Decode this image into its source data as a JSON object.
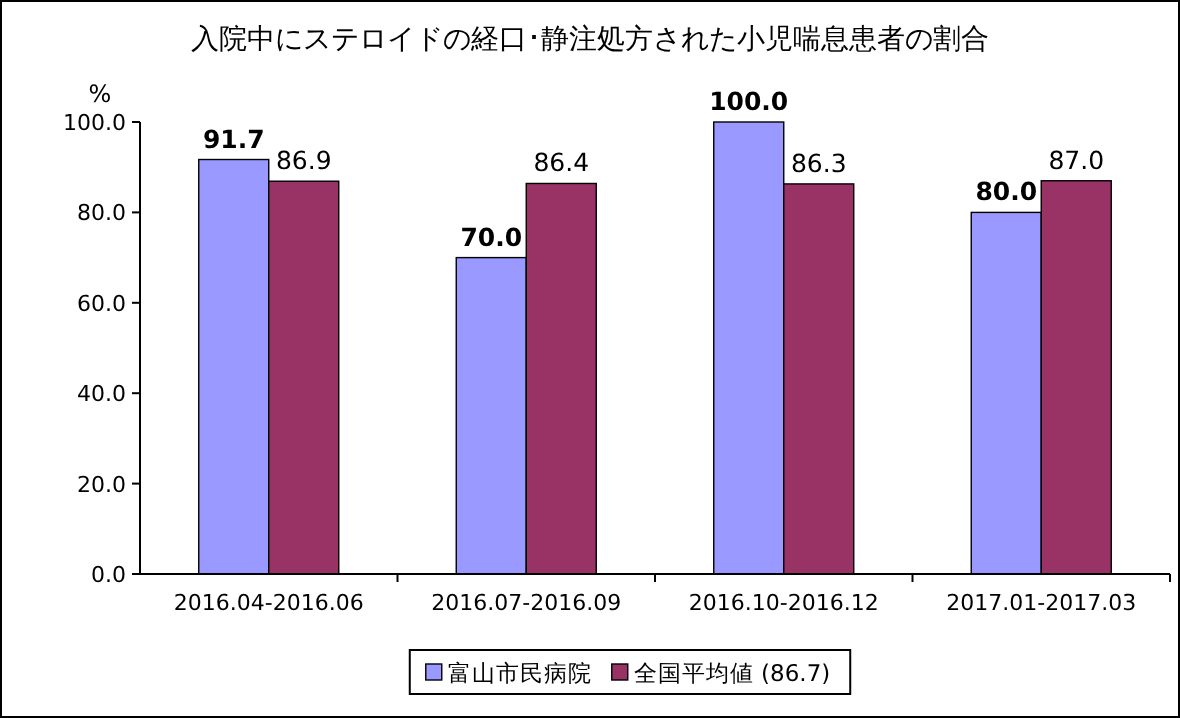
{
  "chart_data": {
    "type": "bar",
    "title": "入院中にステロイドの経口･静注処方された小児喘息患者の割合",
    "ylabel": "%",
    "categories": [
      "2016.04-2016.06",
      "2016.07-2016.09",
      "2016.10-2016.12",
      "2017.01-2017.03"
    ],
    "series": [
      {
        "name": "富山市民病院",
        "color": "#9999ff",
        "values": [
          91.7,
          70.0,
          100.0,
          80.0
        ],
        "value_labels": [
          "91.7",
          "70.0",
          "100.0",
          "80.0"
        ]
      },
      {
        "name": "全国平均値 (86.7)",
        "color": "#993366",
        "values": [
          86.9,
          86.4,
          86.3,
          87.0
        ],
        "value_labels": [
          "86.9",
          "86.4",
          "86.3",
          "87.0"
        ]
      }
    ],
    "ylim": [
      0,
      100
    ],
    "yticks": [
      {
        "value": 0,
        "label": "0.0"
      },
      {
        "value": 20,
        "label": "20.0"
      },
      {
        "value": 40,
        "label": "40.0"
      },
      {
        "value": 60,
        "label": "60.0"
      },
      {
        "value": 80,
        "label": "80.0"
      },
      {
        "value": 100,
        "label": "100.0"
      }
    ],
    "legend": "bottom",
    "grid": false
  }
}
